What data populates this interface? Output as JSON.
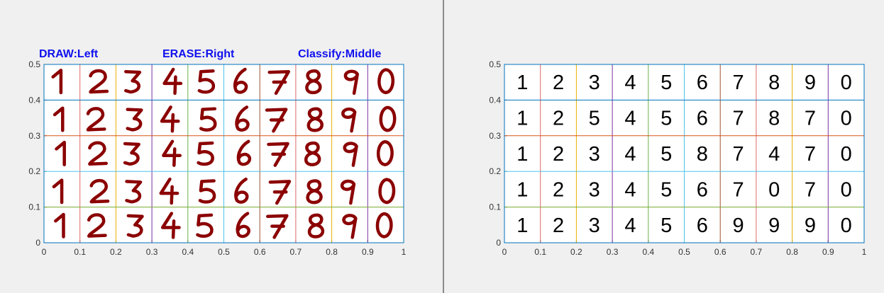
{
  "instructions": {
    "draw": "DRAW:Left",
    "erase": "ERASE:Right",
    "classify": "Classify:Middle"
  },
  "colors": {
    "background": "#f0f0f0",
    "hint_text": "#1010ee",
    "ink": "#8b0000",
    "axis": "#333333",
    "column_lines": [
      "#e06666",
      "#e8b000",
      "#7b2fa0",
      "#6ab04c",
      "#4fc3e8",
      "#a0522d",
      "#e06666",
      "#e8b000",
      "#7b2fa0"
    ],
    "row_lines": [
      "#0072bd",
      "#d95319",
      "#4fc3e8",
      "#77ac30",
      "#7e2f8e"
    ]
  },
  "drawing_axes": {
    "xlim": [
      0,
      1
    ],
    "ylim": [
      0,
      0.5
    ],
    "x_ticks": [
      "0",
      "0.1",
      "0.2",
      "0.3",
      "0.4",
      "0.5",
      "0.6",
      "0.7",
      "0.8",
      "0.9",
      "1"
    ],
    "y_ticks": [
      "0",
      "0.1",
      "0.2",
      "0.3",
      "0.4",
      "0.5"
    ],
    "grid": "10 columns x 5 rows of handwritten digit cells",
    "handwritten_rows": [
      [
        "1",
        "2",
        "3",
        "4",
        "5",
        "6",
        "7",
        "8",
        "9",
        "0"
      ],
      [
        "1",
        "2",
        "3",
        "4",
        "5",
        "6",
        "7",
        "8",
        "9",
        "0"
      ],
      [
        "1",
        "2",
        "3",
        "4",
        "5",
        "6",
        "7",
        "8",
        "9",
        "0"
      ],
      [
        "1",
        "2",
        "3",
        "4",
        "5",
        "6",
        "7",
        "8",
        "9",
        "0"
      ],
      [
        "1",
        "2",
        "3",
        "4",
        "5",
        "6",
        "7",
        "8",
        "9",
        "0"
      ]
    ]
  },
  "result_axes": {
    "xlim": [
      0,
      1
    ],
    "ylim": [
      0,
      0.5
    ],
    "x_ticks": [
      "0",
      "0.1",
      "0.2",
      "0.3",
      "0.4",
      "0.5",
      "0.6",
      "0.7",
      "0.8",
      "0.9",
      "1"
    ],
    "y_ticks": [
      "0",
      "0.1",
      "0.2",
      "0.3",
      "0.4",
      "0.5"
    ],
    "classified_rows": [
      [
        "1",
        "2",
        "3",
        "4",
        "5",
        "6",
        "7",
        "8",
        "9",
        "0"
      ],
      [
        "1",
        "2",
        "5",
        "4",
        "5",
        "6",
        "7",
        "8",
        "7",
        "0"
      ],
      [
        "1",
        "2",
        "3",
        "4",
        "5",
        "8",
        "7",
        "4",
        "7",
        "0"
      ],
      [
        "1",
        "2",
        "3",
        "4",
        "5",
        "6",
        "7",
        "0",
        "7",
        "0"
      ],
      [
        "1",
        "2",
        "3",
        "4",
        "5",
        "6",
        "9",
        "9",
        "9",
        "0"
      ]
    ]
  }
}
